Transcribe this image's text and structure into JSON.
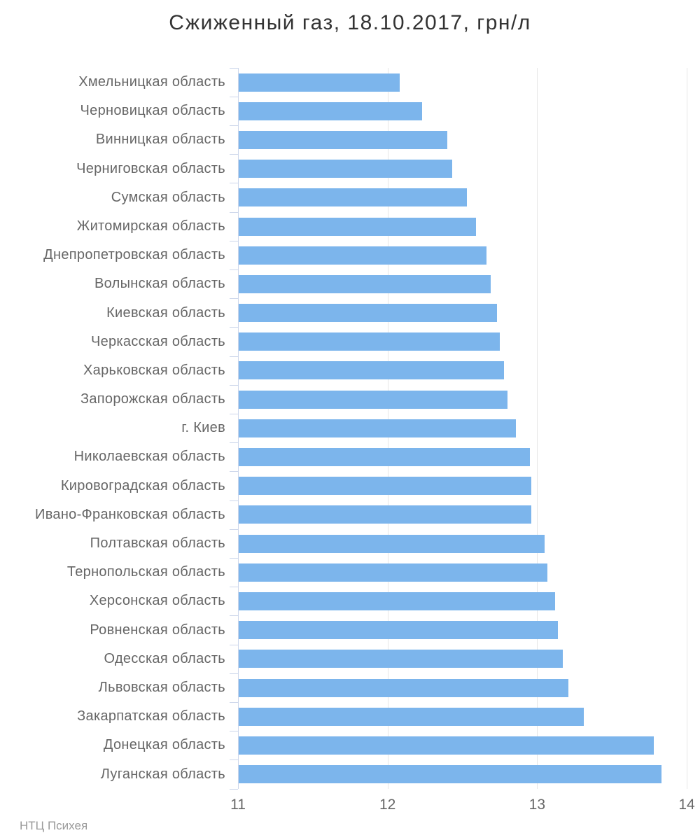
{
  "chart_data": {
    "type": "bar",
    "title": "Сжиженный газ, 18.10.2017, грн/л",
    "xlabel": "",
    "ylabel": "",
    "xlim": [
      11,
      14
    ],
    "x_ticks": [
      11,
      12,
      13,
      14
    ],
    "grid": true,
    "legend": "none",
    "bar_color": "#7cb5ec",
    "axis_color": "#ccd6eb",
    "gridline_color": "#e6e6e6",
    "categories": [
      "Хмельницкая область",
      "Черновицкая область",
      "Винницкая область",
      "Черниговская область",
      "Сумская область",
      "Житомирская область",
      "Днепропетровская область",
      "Волынская область",
      "Киевская область",
      "Черкасская область",
      "Харьковская область",
      "Запорожская область",
      "г. Киев",
      "Николаевская область",
      "Кировоградская область",
      "Ивано-Франковская область",
      "Полтавская область",
      "Тернопольская область",
      "Херсонская область",
      "Ровненская область",
      "Одесская область",
      "Львовская область",
      "Закарпатская область",
      "Донецкая область",
      "Луганская область"
    ],
    "values": [
      12.08,
      12.23,
      12.4,
      12.43,
      12.53,
      12.59,
      12.66,
      12.69,
      12.73,
      12.75,
      12.78,
      12.8,
      12.86,
      12.95,
      12.96,
      12.96,
      13.05,
      13.07,
      13.12,
      13.14,
      13.17,
      13.21,
      13.31,
      13.78,
      13.83
    ]
  },
  "footer": {
    "credits": "НТЦ Психея"
  }
}
